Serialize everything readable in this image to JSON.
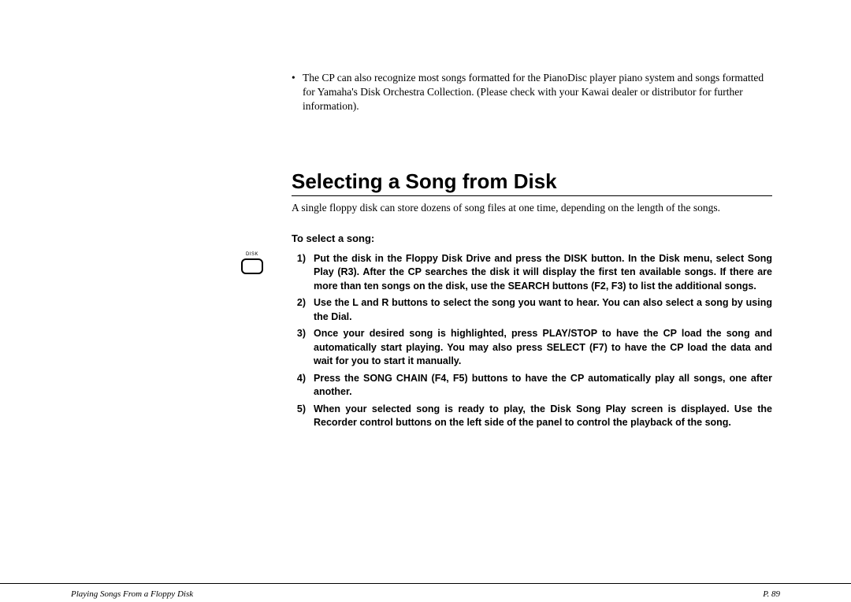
{
  "intro_bullet": "The CP can also recognize most songs formatted for the PianoDisc player piano system and songs formatted for Yamaha's Disk Orchestra Collection. (Please check with your Kawai dealer or distributor for further information).",
  "heading": "Selecting a Song from Disk",
  "intro_text": "A single floppy disk can store dozens of song files at one time, depending on the length of the songs.",
  "sub_heading": "To select a song:",
  "disk_label": "DISK",
  "steps": [
    {
      "n": "1)",
      "t": "Put the disk in the Floppy Disk Drive and press the DISK button.  In the Disk menu, select Song Play (R3).  After the CP searches the disk it will display the first ten available songs.  If there are more than ten songs on the disk, use the SEARCH buttons (F2, F3) to list the additional songs."
    },
    {
      "n": "2)",
      "t": "Use the L and R buttons to select the song you want to hear.  You can also select a song by using the Dial."
    },
    {
      "n": "3)",
      "t": "Once your desired song is highlighted, press PLAY/STOP to have the CP load the song and automatically start playing.  You may also press SELECT (F7) to have the CP load the data and wait for you to start it manually."
    },
    {
      "n": "4)",
      "t": "Press the SONG CHAIN (F4, F5) buttons to have the CP automatically play all songs, one after another."
    },
    {
      "n": "5)",
      "t": "When your selected song is ready to play, the Disk Song Play screen is displayed.  Use the Recorder control buttons on the left side of the panel to control the playback of the song."
    }
  ],
  "footer_left": "Playing Songs From a Floppy Disk",
  "footer_right": "P. 89"
}
